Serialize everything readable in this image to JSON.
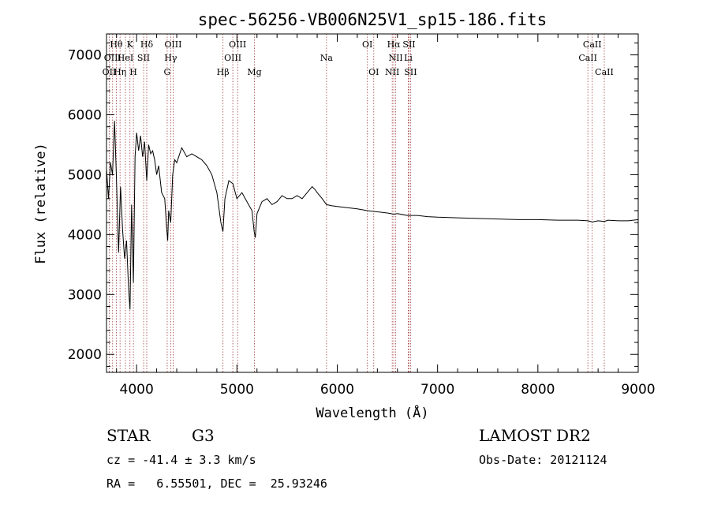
{
  "chart_data": {
    "type": "line",
    "title": "spec-56256-VB006N25V1_sp15-186.fits",
    "xlabel": "Wavelength (Å)",
    "ylabel": "Flux (relative)",
    "xlim": [
      3700,
      9000
    ],
    "ylim": [
      1700,
      7350
    ],
    "x_ticks": [
      4000,
      5000,
      6000,
      7000,
      8000,
      9000
    ],
    "y_ticks": [
      2000,
      3000,
      4000,
      5000,
      6000,
      7000
    ],
    "x_tick_labels": [
      "4000",
      "5000",
      "6000",
      "7000",
      "8000",
      "9000"
    ],
    "y_tick_labels": [
      "2000",
      "3000",
      "4000",
      "5000",
      "6000",
      "7000"
    ],
    "grid": false,
    "series": [
      {
        "color": "#000000",
        "x": [
          3700,
          3720,
          3740,
          3760,
          3780,
          3800,
          3820,
          3840,
          3860,
          3880,
          3900,
          3920,
          3934,
          3950,
          3968,
          3985,
          4000,
          4020,
          4040,
          4060,
          4080,
          4101,
          4120,
          4140,
          4160,
          4180,
          4200,
          4220,
          4250,
          4280,
          4300,
          4310,
          4320,
          4340,
          4360,
          4380,
          4400,
          4450,
          4500,
          4550,
          4600,
          4650,
          4700,
          4750,
          4800,
          4840,
          4861,
          4880,
          4920,
          4960,
          5000,
          5050,
          5100,
          5150,
          5172,
          5183,
          5200,
          5250,
          5300,
          5350,
          5400,
          5450,
          5500,
          5550,
          5600,
          5650,
          5700,
          5750,
          5780,
          5800,
          5850,
          5893,
          5950,
          6000,
          6100,
          6200,
          6300,
          6400,
          6500,
          6563,
          6600,
          6700,
          6800,
          6900,
          7000,
          7200,
          7400,
          7600,
          7800,
          8000,
          8200,
          8400,
          8500,
          8542,
          8600,
          8662,
          8700,
          8800,
          8900,
          9000
        ],
        "y": [
          5100,
          4600,
          5200,
          5000,
          5900,
          4900,
          3700,
          4800,
          4100,
          3600,
          3900,
          3100,
          2750,
          4500,
          3200,
          5300,
          5700,
          5400,
          5650,
          5300,
          5550,
          4900,
          5500,
          5350,
          5400,
          5250,
          5000,
          5150,
          4700,
          4600,
          4100,
          3900,
          4400,
          4200,
          5000,
          5250,
          5200,
          5450,
          5300,
          5350,
          5300,
          5250,
          5150,
          5000,
          4700,
          4200,
          4050,
          4600,
          4900,
          4850,
          4600,
          4700,
          4550,
          4400,
          4050,
          3950,
          4350,
          4550,
          4600,
          4500,
          4550,
          4650,
          4600,
          4600,
          4650,
          4600,
          4700,
          4800,
          4750,
          4700,
          4600,
          4500,
          4480,
          4470,
          4450,
          4430,
          4400,
          4380,
          4360,
          4340,
          4350,
          4320,
          4320,
          4300,
          4290,
          4280,
          4270,
          4260,
          4250,
          4250,
          4240,
          4240,
          4230,
          4210,
          4230,
          4220,
          4240,
          4230,
          4230,
          4250
        ]
      }
    ],
    "spectral_lines": [
      {
        "name": "OII",
        "wl": 3727,
        "row": 3
      },
      {
        "name": "Hθ",
        "wl": 3798,
        "row": 1
      },
      {
        "name": "OIII",
        "wl": 3761,
        "row": 2
      },
      {
        "name": "Hη",
        "wl": 3835,
        "row": 3
      },
      {
        "name": "HeI",
        "wl": 3889,
        "row": 2
      },
      {
        "name": "K",
        "wl": 3934,
        "row": 1
      },
      {
        "name": "H",
        "wl": 3968,
        "row": 3
      },
      {
        "name": "SII",
        "wl": 4070,
        "row": 2
      },
      {
        "name": "Hδ",
        "wl": 4101,
        "row": 1
      },
      {
        "name": "G",
        "wl": 4305,
        "row": 3
      },
      {
        "name": "Hγ",
        "wl": 4340,
        "row": 2
      },
      {
        "name": "OIII",
        "wl": 4364,
        "row": 1
      },
      {
        "name": "Hβ",
        "wl": 4861,
        "row": 3
      },
      {
        "name": "OIII",
        "wl": 4959,
        "row": 2
      },
      {
        "name": "OIII",
        "wl": 5007,
        "row": 1
      },
      {
        "name": "Mg",
        "wl": 5175,
        "row": 3
      },
      {
        "name": "Na",
        "wl": 5893,
        "row": 2
      },
      {
        "name": "OI",
        "wl": 6300,
        "row": 1
      },
      {
        "name": "OI",
        "wl": 6364,
        "row": 3
      },
      {
        "name": "NII",
        "wl": 6548,
        "row": 3
      },
      {
        "name": "Hα",
        "wl": 6563,
        "row": 1
      },
      {
        "name": "NII",
        "wl": 6583,
        "row": 2
      },
      {
        "name": "Li",
        "wl": 6708,
        "row": 2
      },
      {
        "name": "SII",
        "wl": 6716,
        "row": 1
      },
      {
        "name": "SII",
        "wl": 6731,
        "row": 3
      },
      {
        "name": "CaII",
        "wl": 8498,
        "row": 2
      },
      {
        "name": "CaII",
        "wl": 8542,
        "row": 1
      },
      {
        "name": "CaII",
        "wl": 8662,
        "row": 3
      }
    ],
    "line_marker_color": "#a04040"
  },
  "info": {
    "class_label": "STAR",
    "subclass_label": "G3",
    "survey_label": "LAMOST DR2",
    "cz_text": "cz = -41.4 ± 3.3 km/s",
    "obs_date_text": "Obs-Date: 20121124",
    "coords_text": "RA =   6.55501, DEC =  25.93246"
  }
}
